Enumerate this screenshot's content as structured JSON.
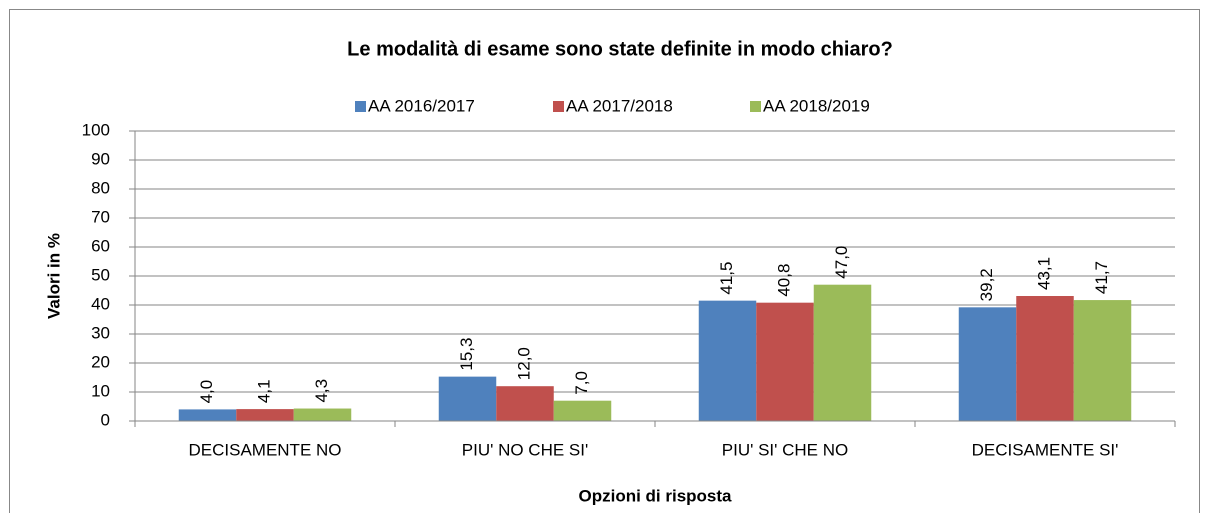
{
  "chart_data": {
    "type": "bar",
    "title": "Le modalità di esame sono state definite in modo chiaro?",
    "x_label": "Opzioni di risposta",
    "y_label": "Valori in %",
    "categories": [
      "DECISAMENTE NO",
      "PIU' NO CHE SI'",
      "PIU' SI' CHE NO",
      "DECISAMENTE SI'"
    ],
    "series": [
      {
        "name": "AA 2016/2017",
        "color": "#4f81bd",
        "values": [
          4.0,
          15.3,
          41.5,
          39.2
        ],
        "value_labels": [
          "4,0",
          "15,3",
          "41,5",
          "39,2"
        ]
      },
      {
        "name": "AA 2017/2018",
        "color": "#c0504d",
        "values": [
          4.1,
          12.0,
          40.8,
          43.1
        ],
        "value_labels": [
          "4,1",
          "12,0",
          "40,8",
          "43,1"
        ]
      },
      {
        "name": "AA 2018/2019",
        "color": "#9bbb59",
        "values": [
          4.3,
          7.0,
          47.0,
          41.7
        ],
        "value_labels": [
          "4,3",
          "7,0",
          "47,0",
          "41,7"
        ]
      }
    ],
    "ylim": [
      0,
      100
    ],
    "yticks": [
      0,
      10,
      20,
      30,
      40,
      50,
      60,
      70,
      80,
      90,
      100
    ],
    "grid": true,
    "legend": "top"
  }
}
